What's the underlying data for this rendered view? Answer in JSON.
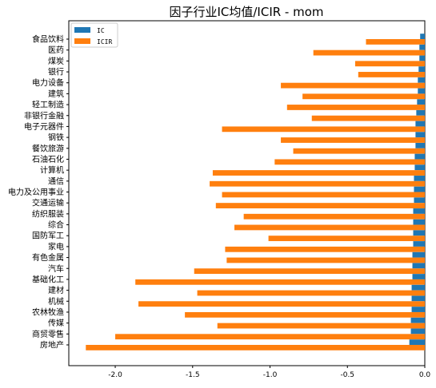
{
  "chart_data": {
    "type": "bar",
    "orientation": "horizontal",
    "title": "因子行业IC均值/ICIR - mom",
    "xlabel": "",
    "ylabel": "",
    "xlim": [
      -2.3,
      0.0
    ],
    "xticks": [
      -2.0,
      -1.5,
      -1.0,
      -0.5,
      0.0
    ],
    "xtick_labels": [
      "-2.0",
      "-1.5",
      "-1.0",
      "-0.5",
      "0.0"
    ],
    "grid": false,
    "legend_position": "top-left",
    "categories": [
      "食品饮料",
      "医药",
      "煤炭",
      "银行",
      "电力设备",
      "建筑",
      "轻工制造",
      "非银行金融",
      "电子元器件",
      "钢铁",
      "餐饮旅游",
      "石油石化",
      "计算机",
      "通信",
      "电力及公用事业",
      "交通运输",
      "纺织服装",
      "综合",
      "国防军工",
      "家电",
      "有色金属",
      "汽车",
      "基础化工",
      "建材",
      "机械",
      "农林牧渔",
      "传媒",
      "商贸零售",
      "房地产"
    ],
    "series": [
      {
        "name": "IC",
        "color": "#1f77b4",
        "values": [
          -0.03,
          -0.035,
          -0.035,
          -0.04,
          -0.045,
          -0.045,
          -0.05,
          -0.055,
          -0.06,
          -0.06,
          -0.06,
          -0.065,
          -0.065,
          -0.07,
          -0.07,
          -0.07,
          -0.075,
          -0.075,
          -0.075,
          -0.075,
          -0.08,
          -0.08,
          -0.08,
          -0.085,
          -0.085,
          -0.085,
          -0.09,
          -0.09,
          -0.1
        ]
      },
      {
        "name": "ICIR",
        "color": "#ff7f0e",
        "values": [
          -0.38,
          -0.72,
          -0.45,
          -0.43,
          -0.93,
          -0.79,
          -0.89,
          -0.73,
          -1.31,
          -0.93,
          -0.85,
          -0.97,
          -1.37,
          -1.39,
          -1.31,
          -1.35,
          -1.17,
          -1.23,
          -1.01,
          -1.29,
          -1.28,
          -1.49,
          -1.87,
          -1.47,
          -1.85,
          -1.55,
          -1.34,
          -2.0,
          -2.19
        ]
      }
    ]
  }
}
